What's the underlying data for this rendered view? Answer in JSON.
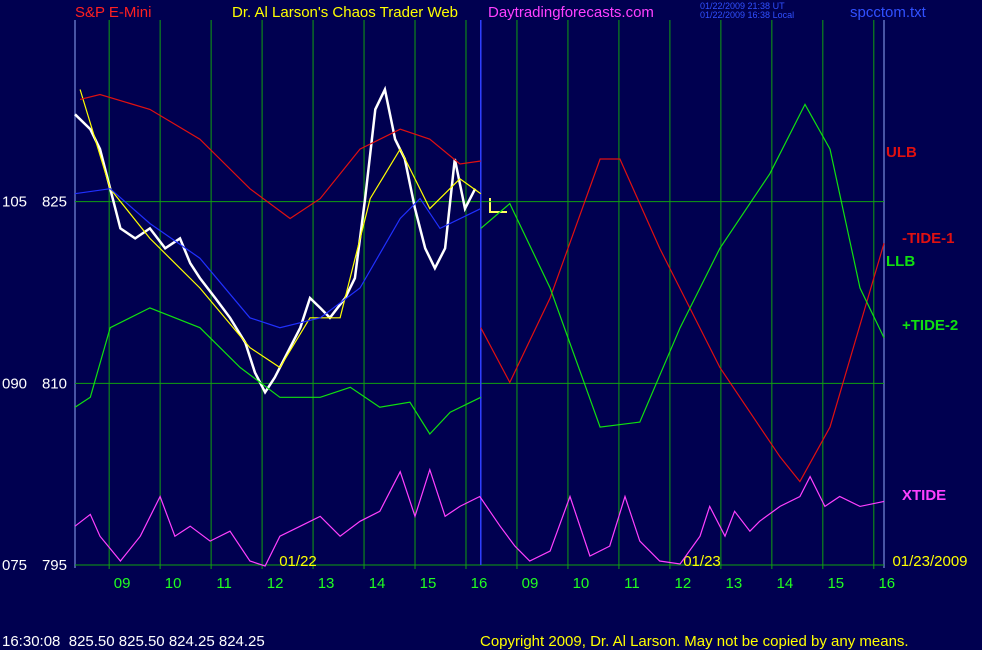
{
  "chart_data": {
    "type": "line",
    "symbol": "S&P E-Mini",
    "title": "Dr. Al Larson's Chaos Trader Web",
    "website": "Daytradingforecasts.com",
    "timestamps": [
      "01/22/2009 21:38 UT",
      "01/22/2009 16:38 Local"
    ],
    "file": "spcctom.txt",
    "quote": "16:30:08  825.50 825.50 824.25 824.25",
    "copyright": "Copyright 2009, Dr. Al Larson. May not be copied by any means.",
    "dates": [
      "01/22",
      "01/23",
      "01/23/2009"
    ],
    "xlim": [
      -0.67,
      15.2
    ],
    "xticks": [
      {
        "value": 0,
        "label": "09"
      },
      {
        "value": 1,
        "label": "10"
      },
      {
        "value": 2,
        "label": "11"
      },
      {
        "value": 3,
        "label": "12"
      },
      {
        "value": 4,
        "label": "13"
      },
      {
        "value": 5,
        "label": "14"
      },
      {
        "value": 6,
        "label": "15"
      },
      {
        "value": 7,
        "label": "16"
      },
      {
        "value": 8,
        "label": "09"
      },
      {
        "value": 9,
        "label": "10"
      },
      {
        "value": 10,
        "label": "11"
      },
      {
        "value": 11,
        "label": "12"
      },
      {
        "value": 12,
        "label": "13"
      },
      {
        "value": 13,
        "label": "14"
      },
      {
        "value": 14,
        "label": "15"
      },
      {
        "value": 15,
        "label": "16"
      }
    ],
    "ylim": [
      795,
      840
    ],
    "yticks": [
      795,
      810,
      825
    ],
    "y2lim": [
      75,
      120
    ],
    "y2ticks": [
      {
        "value": 75,
        "label": "075"
      },
      {
        "value": 90,
        "label": "090"
      },
      105
    ],
    "now": 7.29,
    "grid": true,
    "series": [
      {
        "color": "#ffffff",
        "x": [
          -0.67,
          -0.37,
          -0.18,
          0.02,
          0.22,
          0.51,
          0.8,
          1.1,
          1.39,
          1.59,
          1.78,
          2.08,
          2.37,
          2.67,
          2.86,
          3.06,
          3.25,
          3.55,
          3.75,
          3.94,
          4.14,
          4.33,
          4.63,
          4.82,
          5.02,
          5.22,
          5.41,
          5.61,
          5.8,
          6.0,
          6.2,
          6.39,
          6.59,
          6.78,
          6.98,
          7.18
        ],
        "values": [
          832.21,
          830.98,
          829.34,
          826.07,
          822.79,
          821.97,
          822.79,
          821.15,
          821.97,
          819.92,
          818.69,
          817.05,
          815.41,
          813.36,
          810.9,
          809.26,
          810.49,
          812.95,
          814.59,
          817.05,
          816.23,
          815.41,
          817.05,
          818.69,
          825.25,
          832.62,
          834.26,
          830.16,
          828.52,
          824.43,
          821.15,
          819.51,
          821.15,
          828.52,
          824.43,
          826.07
        ]
      },
      {
        "color": "#ffff00",
        "x": [
          -0.57,
          0.02,
          0.8,
          1.78,
          2.76,
          3.35,
          3.94,
          4.53,
          5.12,
          5.71,
          6.29,
          6.88,
          7.29
        ],
        "values": [
          834.26,
          826.07,
          821.97,
          817.87,
          812.95,
          811.31,
          815.41,
          815.41,
          825.25,
          829.34,
          824.43,
          826.89,
          825.66
        ]
      },
      {
        "color": "#2030ff",
        "x": [
          -0.67,
          0.02,
          0.8,
          1.78,
          2.76,
          3.35,
          4.14,
          4.92,
          5.71,
          6.1,
          6.49,
          7.29
        ],
        "values": [
          825.66,
          826.07,
          823.2,
          820.33,
          815.41,
          814.59,
          815.41,
          817.87,
          823.61,
          825.25,
          822.79,
          824.43
        ]
      },
      {
        "name": "ULB",
        "color": "#e01010",
        "x": [
          -0.57,
          -0.18,
          0.8,
          1.78,
          2.76,
          3.55,
          4.14,
          4.92,
          5.71,
          6.29,
          6.88,
          7.29
        ],
        "values": [
          833.44,
          833.85,
          832.62,
          830.16,
          826.07,
          823.61,
          825.25,
          829.34,
          830.98,
          830.16,
          828.11,
          828.36
        ]
      },
      {
        "name": "LLB",
        "color": "#10e010",
        "x": [
          -0.67,
          -0.37,
          0.02,
          0.8,
          1.78,
          2.57,
          3.35,
          4.14,
          4.73,
          5.31,
          5.9,
          6.29,
          6.69,
          7.29
        ],
        "values": [
          808.03,
          808.85,
          814.59,
          816.23,
          814.59,
          811.31,
          808.85,
          808.85,
          809.67,
          808.03,
          808.44,
          805.82,
          807.62,
          808.85
        ]
      },
      {
        "name": "-TIDE-1",
        "color": "#e01010",
        "x": [
          7.29,
          7.86,
          8.65,
          9.63,
          10.02,
          10.8,
          11.98,
          13.16,
          13.55,
          14.14,
          15.2
        ],
        "values": [
          814.59,
          810.08,
          817.05,
          828.52,
          828.52,
          821.15,
          811.31,
          803.93,
          801.89,
          806.39,
          821.56
        ]
      },
      {
        "name": "+TIDE-2",
        "color": "#10e010",
        "x": [
          7.29,
          7.86,
          8.65,
          9.63,
          10.41,
          11.2,
          11.98,
          12.96,
          13.65,
          14.14,
          14.73,
          15.2
        ],
        "values": [
          822.79,
          824.84,
          817.87,
          806.39,
          806.8,
          814.59,
          821.15,
          827.3,
          833.03,
          829.34,
          817.87,
          813.77
        ]
      },
      {
        "name": "XTIDE",
        "color": "#ff40ff",
        "x": [
          -0.67,
          -0.37,
          -0.18,
          0.22,
          0.61,
          1.0,
          1.29,
          1.59,
          1.98,
          2.37,
          2.76,
          3.06,
          3.35,
          3.75,
          4.14,
          4.53,
          4.92,
          5.31,
          5.71,
          6.0,
          6.29,
          6.59,
          6.88,
          7.27,
          7.67,
          7.96,
          8.25,
          8.65,
          9.04,
          9.43,
          9.82,
          10.12,
          10.41,
          10.8,
          11.2,
          11.59,
          11.78,
          12.08,
          12.27,
          12.57,
          12.76,
          13.16,
          13.55,
          13.75,
          14.04,
          14.33,
          14.73,
          15.2
        ],
        "values": [
          798.2,
          799.18,
          797.38,
          795.33,
          797.38,
          800.66,
          797.38,
          798.2,
          796.97,
          797.79,
          795.33,
          794.92,
          797.38,
          798.2,
          799.02,
          797.38,
          798.61,
          799.43,
          802.7,
          799.02,
          802.87,
          799.02,
          799.84,
          800.66,
          798.2,
          796.56,
          795.33,
          796.15,
          800.66,
          795.74,
          796.56,
          800.66,
          796.97,
          795.33,
          795.08,
          797.38,
          799.84,
          797.38,
          799.43,
          797.79,
          798.61,
          799.84,
          800.66,
          802.3,
          799.84,
          800.66,
          799.84,
          800.25
        ]
      }
    ]
  }
}
